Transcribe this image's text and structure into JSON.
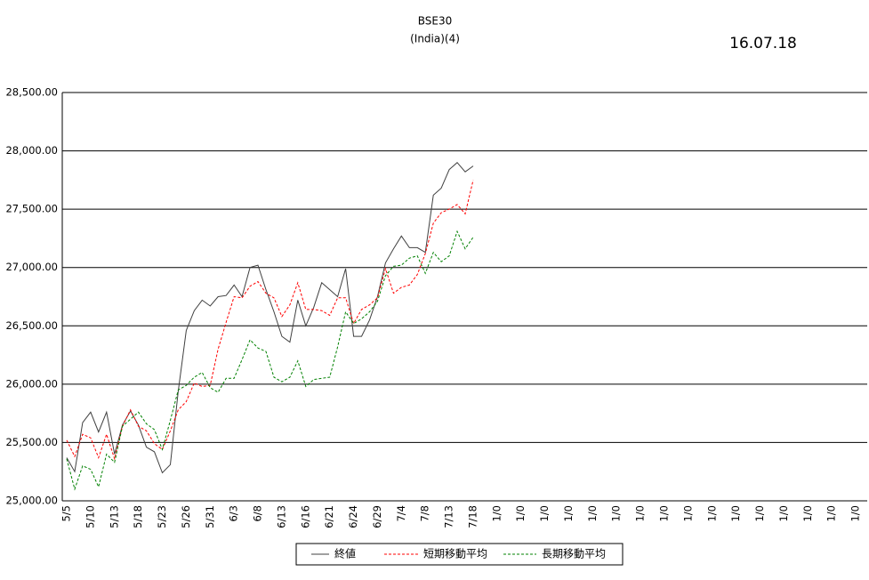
{
  "chart_data": {
    "type": "line",
    "title": "BSE30",
    "subtitle": "(India)(4)",
    "date": "16.07.18",
    "categories": [
      "5/5",
      null,
      null,
      "5/10",
      null,
      null,
      "5/13",
      null,
      null,
      "5/18",
      null,
      null,
      "5/23",
      null,
      null,
      "5/26",
      null,
      null,
      "5/31",
      null,
      null,
      "6/3",
      null,
      null,
      "6/8",
      null,
      null,
      "6/13",
      null,
      null,
      "6/16",
      null,
      null,
      "6/21",
      null,
      null,
      "6/24",
      null,
      null,
      "6/29",
      null,
      null,
      "7/4",
      null,
      null,
      "7/8",
      null,
      null,
      "7/13",
      null,
      null,
      "7/18",
      null,
      null,
      "1/0",
      null,
      null,
      "1/0",
      null,
      null,
      "1/0",
      null,
      null,
      "1/0",
      null,
      null,
      "1/0",
      null,
      null,
      "1/0",
      null,
      null,
      "1/0",
      null,
      null,
      "1/0",
      null,
      null,
      "1/0",
      null,
      null,
      "1/0",
      null,
      null,
      "1/0",
      null,
      null,
      "1/0",
      null,
      null,
      "1/0",
      null,
      null,
      "1/0",
      null,
      null,
      "1/0",
      null,
      null,
      "1/0"
    ],
    "series": [
      {
        "name": "終値",
        "color": "#404040",
        "dash": false,
        "values": [
          25370,
          25250,
          25670,
          25760,
          25590,
          25760,
          25400,
          25650,
          25770,
          25650,
          25460,
          25420,
          25240,
          25310,
          25940,
          26460,
          26630,
          26720,
          26670,
          26750,
          26760,
          26850,
          26750,
          27000,
          27020,
          26810,
          26620,
          26410,
          26360,
          26720,
          26500,
          26660,
          26870,
          26810,
          26750,
          26990,
          26410,
          26410,
          26550,
          26750,
          27040,
          27160,
          27270,
          27170,
          27170,
          27130,
          27620,
          27680,
          27840,
          27900,
          27820,
          27870,
          null,
          null,
          null,
          null,
          null,
          null,
          null,
          null,
          null,
          null,
          null,
          null,
          null,
          null,
          null,
          null,
          null,
          null,
          null,
          null,
          null,
          null,
          null,
          null,
          null,
          null,
          null,
          null,
          null,
          null,
          null,
          null,
          null,
          null,
          null,
          null,
          null,
          null,
          null,
          null,
          null,
          null,
          null,
          null,
          null,
          null,
          null,
          null
        ]
      },
      {
        "name": "短期移動平均",
        "color": "#ff0000",
        "dash": true,
        "values": [
          25520,
          25380,
          25570,
          25540,
          25370,
          25570,
          25360,
          25640,
          25780,
          25640,
          25600,
          25490,
          25440,
          25600,
          25780,
          25850,
          26010,
          25980,
          25990,
          26300,
          26530,
          26750,
          26740,
          26840,
          26880,
          26780,
          26740,
          26580,
          26680,
          26870,
          26640,
          26640,
          26630,
          26590,
          26740,
          26740,
          26520,
          26640,
          26680,
          26740,
          26990,
          26780,
          26830,
          26850,
          26940,
          27120,
          27380,
          27470,
          27500,
          27540,
          27460,
          27750,
          null,
          null,
          null,
          null,
          null,
          null,
          null,
          null,
          null,
          null,
          null,
          null,
          null,
          null,
          null,
          null,
          null,
          null,
          null,
          null,
          null,
          null,
          null,
          null,
          null,
          null,
          null,
          null,
          null,
          null,
          null,
          null,
          null,
          null,
          null,
          null,
          null,
          null,
          null,
          null,
          null,
          null,
          null,
          null,
          null,
          null,
          null,
          null
        ]
      },
      {
        "name": "長期移動平均",
        "color": "#008000",
        "dash": true,
        "values": [
          25360,
          25100,
          25300,
          25270,
          25120,
          25400,
          25330,
          25640,
          25700,
          25760,
          25660,
          25610,
          25440,
          25690,
          25950,
          25990,
          26060,
          26100,
          25970,
          25930,
          26050,
          26050,
          26210,
          26380,
          26310,
          26280,
          26060,
          26020,
          26060,
          26200,
          25980,
          26040,
          26050,
          26060,
          26320,
          26620,
          26520,
          26560,
          26620,
          26710,
          26930,
          27010,
          27020,
          27080,
          27100,
          26950,
          27130,
          27050,
          27100,
          27310,
          27160,
          27260,
          null,
          null,
          null,
          null,
          null,
          null,
          null,
          null,
          null,
          null,
          null,
          null,
          null,
          null,
          null,
          null,
          null,
          null,
          null,
          null,
          null,
          null,
          null,
          null,
          null,
          null,
          null,
          null,
          null,
          null,
          null,
          null,
          null,
          null,
          null,
          null,
          null,
          null,
          null,
          null,
          null,
          null,
          null,
          null,
          null,
          null,
          null,
          null
        ]
      }
    ],
    "ylim": [
      25000,
      28500
    ],
    "yticks": [
      {
        "value": 25000,
        "label": "25,000.00"
      },
      {
        "value": 25500,
        "label": "25,500.00"
      },
      {
        "value": 26000,
        "label": "26,000.00"
      },
      {
        "value": 26500,
        "label": "26,500.00"
      },
      {
        "value": 27000,
        "label": "27,000.00"
      },
      {
        "value": 27500,
        "label": "27,500.00"
      },
      {
        "value": 28000,
        "label": "28,000.00"
      },
      {
        "value": 28500,
        "label": "28,500.00"
      }
    ],
    "grid": true,
    "legend": "bottom"
  }
}
